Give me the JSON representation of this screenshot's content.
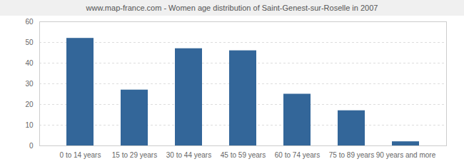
{
  "chart_data": {
    "type": "bar",
    "title": "www.map-france.com - Women age distribution of Saint-Genest-sur-Roselle in 2007",
    "categories": [
      "0 to 14 years",
      "15 to 29 years",
      "30 to 44 years",
      "45 to 59 years",
      "60 to 74 years",
      "75 to 89 years",
      "90 years and more"
    ],
    "values": [
      52,
      27,
      47,
      46,
      25,
      17,
      2
    ],
    "color": "#336699",
    "ylim": [
      0,
      60
    ],
    "yticks": [
      0,
      10,
      20,
      30,
      40,
      50,
      60
    ],
    "grid": true
  }
}
